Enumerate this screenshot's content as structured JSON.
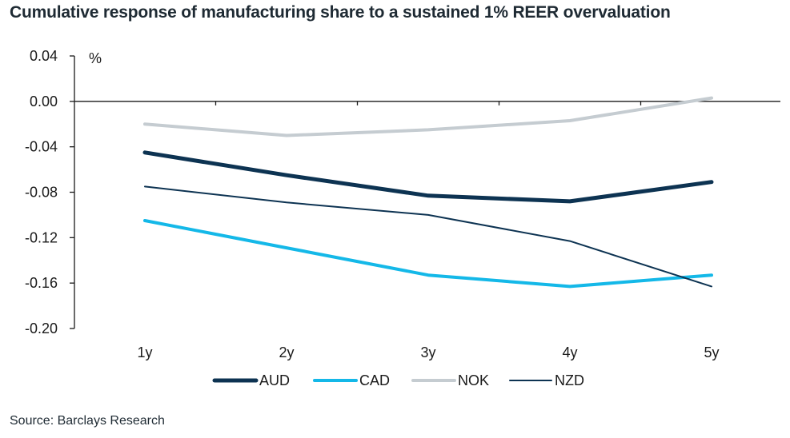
{
  "chart_data": {
    "type": "line",
    "title": "Cumulative response of manufacturing share to a sustained 1% REER overvaluation",
    "ylabel": "%",
    "xlabel": "",
    "categories": [
      "1y",
      "2y",
      "3y",
      "4y",
      "5y"
    ],
    "ylim": [
      -0.2,
      0.04
    ],
    "yticks": [
      "0.04",
      "0.00",
      "-0.04",
      "-0.08",
      "-0.12",
      "-0.16",
      "-0.20"
    ],
    "ytick_values": [
      0.04,
      0.0,
      -0.04,
      -0.08,
      -0.12,
      -0.16,
      -0.2
    ],
    "series": [
      {
        "name": "AUD",
        "values": [
          -0.045,
          -0.065,
          -0.083,
          -0.088,
          -0.071
        ],
        "color": "#0d3352",
        "width": 5
      },
      {
        "name": "CAD",
        "values": [
          -0.105,
          -0.129,
          -0.153,
          -0.163,
          -0.153
        ],
        "color": "#14b8e8",
        "width": 4
      },
      {
        "name": "NOK",
        "values": [
          -0.02,
          -0.03,
          -0.025,
          -0.017,
          0.003
        ],
        "color": "#c5ccd1",
        "width": 4
      },
      {
        "name": "NZD",
        "values": [
          -0.075,
          -0.089,
          -0.1,
          -0.123,
          -0.163
        ],
        "color": "#0d3352",
        "width": 2
      }
    ],
    "legend_position": "bottom-center",
    "grid": false
  },
  "source": "Source: Barclays Research"
}
